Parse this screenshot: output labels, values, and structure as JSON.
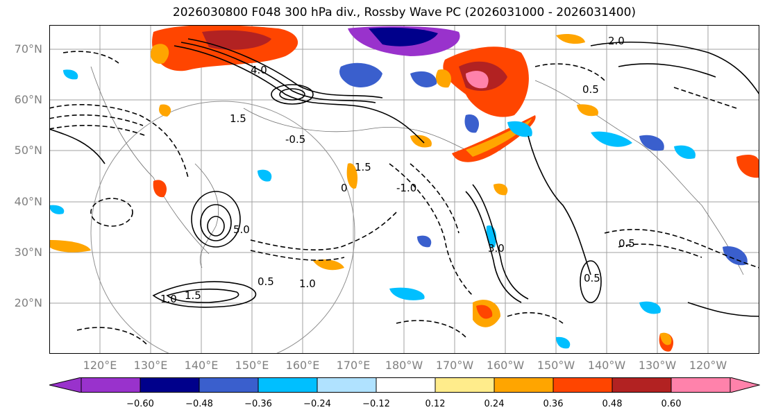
{
  "title": "2026030800 F048 300 hPa div., Rossby Wave PC (2026031000 - 2026031400)",
  "map": {
    "lat_labels": [
      "70°N",
      "60°N",
      "50°N",
      "40°N",
      "30°N",
      "20°N"
    ],
    "lon_labels": [
      "120°E",
      "130°E",
      "140°E",
      "150°E",
      "160°E",
      "170°E",
      "180°W",
      "170°W",
      "160°W",
      "150°W",
      "140°W",
      "130°W",
      "120°W"
    ],
    "contour_labels": [
      "0.5",
      "1.0",
      "1.5",
      "2.0",
      "3.0",
      "4.0",
      "5.0",
      "0",
      "-0.5",
      "-1.0"
    ]
  },
  "colorbar": {
    "ticks": [
      "−0.60",
      "−0.48",
      "−0.36",
      "−0.24",
      "−0.12",
      "0.12",
      "0.24",
      "0.36",
      "0.48",
      "0.60"
    ],
    "colors": [
      "#9932cc",
      "#00008b",
      "#3a5fcd",
      "#00bfff",
      "#b0e2ff",
      "#ffffff",
      "#ffec8b",
      "#ffa500",
      "#ff4500",
      "#b22222",
      "#ff82ab"
    ]
  }
}
